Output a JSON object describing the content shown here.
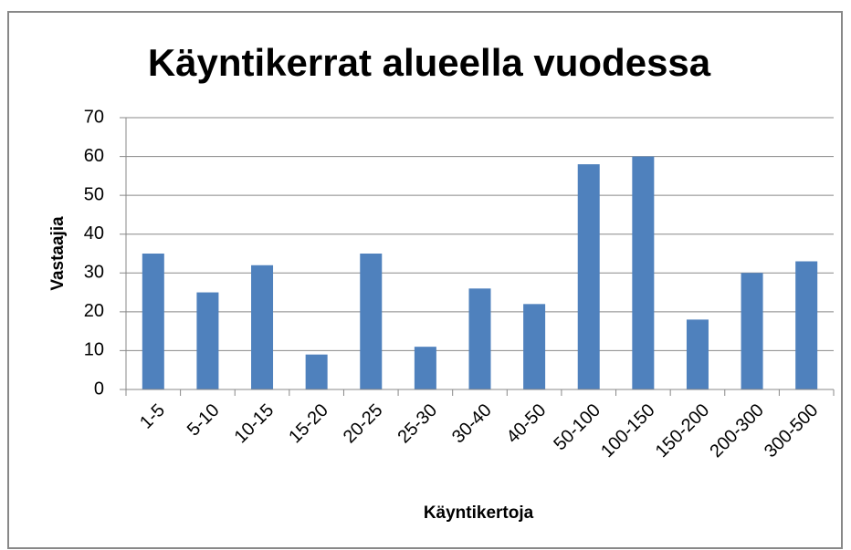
{
  "chart_data": {
    "type": "bar",
    "title": "Käyntikerrat alueella vuodessa",
    "x_label": "Käyntikertoja",
    "y_label": "Vastaajia",
    "categories": [
      "1-5",
      "5-10",
      "10-15",
      "15-20",
      "20-25",
      "25-30",
      "30-40",
      "40-50",
      "50-100",
      "100-150",
      "150-200",
      "200-300",
      "300-500"
    ],
    "values": [
      35,
      25,
      32,
      9,
      35,
      11,
      26,
      22,
      58,
      60,
      18,
      30,
      33
    ],
    "color": "#4f81bd",
    "ylim": [
      0,
      70
    ],
    "yticks": [
      0,
      10,
      20,
      30,
      40,
      50,
      60,
      70
    ],
    "grid": true
  }
}
